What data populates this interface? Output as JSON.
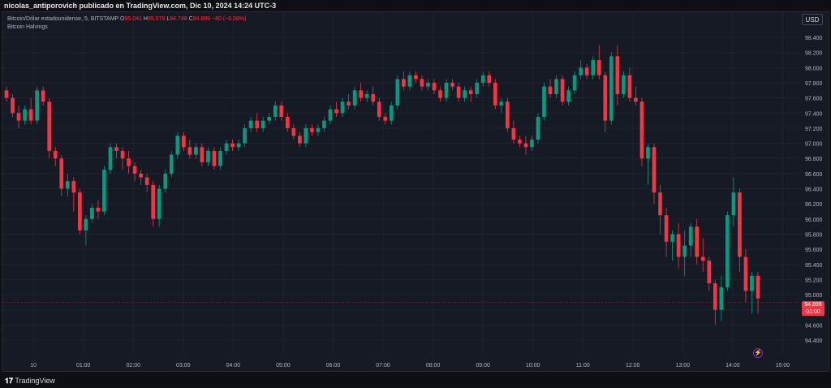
{
  "header": {
    "attribution": "nicolas_antiporovich publicado en TradingView.com, Dic 10, 2024 14:24 UTC-3"
  },
  "legend": {
    "symbol": "Bitcoin/Dólar estadounidense, 5, BITSTAMP",
    "o_label": "O",
    "o_value": "95.041",
    "h_label": "H",
    "h_value": "95.079",
    "l_label": "L",
    "l_value": "94.748",
    "c_label": "C",
    "c_value": "94.899",
    "change": "−80 (−0.08%)",
    "indicator": "Bitcoin Halvings"
  },
  "currency_button": "USD",
  "price_tag": {
    "price": "94.899",
    "countdown": "01:00"
  },
  "footer": {
    "brand": "TradingView"
  },
  "colors": {
    "up": "#089981",
    "down": "#f23645",
    "grid": "#1f2330",
    "text": "#b2b5be"
  },
  "chart_data": {
    "type": "candlestick",
    "interval": "5",
    "yticks": [
      94400,
      94600,
      94800,
      95000,
      95200,
      95400,
      95600,
      95800,
      96000,
      96200,
      96400,
      96600,
      96800,
      97000,
      97200,
      97400,
      97600,
      97800,
      98000,
      98200,
      98400
    ],
    "ytick_labels": [
      "94.400",
      "94.600",
      "94.800",
      "95.000",
      "95.200",
      "95.400",
      "95.600",
      "95.800",
      "96.000",
      "96.200",
      "96.400",
      "96.600",
      "96.800",
      "97.000",
      "97.200",
      "97.400",
      "97.600",
      "97.800",
      "98.000",
      "98.200",
      "98.400"
    ],
    "ylim": [
      94250,
      98540
    ],
    "x_hours": [
      0,
      1,
      2,
      3,
      4,
      5,
      6,
      7,
      8,
      9,
      10,
      11,
      12,
      13,
      14,
      15
    ],
    "x_labels": [
      "10",
      "01:00",
      "02:00",
      "03:00",
      "04:00",
      "05:00",
      "06:00",
      "07:00",
      "08:00",
      "09:00",
      "10:00",
      "11:00",
      "12:00",
      "13:00",
      "14:00",
      "15:00"
    ],
    "xlim_hours": [
      -0.62,
      15.35
    ],
    "last_price": 94899,
    "candles": [
      [
        97700,
        97750,
        97550,
        97600
      ],
      [
        97600,
        97650,
        97350,
        97400
      ],
      [
        97400,
        97500,
        97200,
        97300
      ],
      [
        97300,
        97500,
        97250,
        97450
      ],
      [
        97450,
        97600,
        97250,
        97300
      ],
      [
        97300,
        97750,
        97250,
        97700
      ],
      [
        97700,
        97750,
        97500,
        97550
      ],
      [
        97550,
        97600,
        96800,
        96900
      ],
      [
        96900,
        96950,
        96700,
        96800
      ],
      [
        96800,
        96850,
        96300,
        96400
      ],
      [
        96400,
        96600,
        96300,
        96500
      ],
      [
        96500,
        96550,
        96100,
        96350
      ],
      [
        96350,
        96400,
        95800,
        95850
      ],
      [
        95850,
        96050,
        95650,
        96000
      ],
      [
        96000,
        96200,
        95950,
        96150
      ],
      [
        96150,
        96250,
        96000,
        96100
      ],
      [
        96100,
        96700,
        96050,
        96650
      ],
      [
        96650,
        97000,
        96600,
        96950
      ],
      [
        96950,
        97000,
        96800,
        96900
      ],
      [
        96900,
        96950,
        96650,
        96800
      ],
      [
        96800,
        96900,
        96600,
        96700
      ],
      [
        96700,
        96750,
        96500,
        96600
      ],
      [
        96600,
        96650,
        96450,
        96550
      ],
      [
        96550,
        96600,
        96350,
        96450
      ],
      [
        96450,
        96500,
        95900,
        96000
      ],
      [
        96000,
        96450,
        95900,
        96400
      ],
      [
        96400,
        96650,
        96350,
        96600
      ],
      [
        96600,
        96900,
        96550,
        96850
      ],
      [
        96850,
        97150,
        96800,
        97100
      ],
      [
        97100,
        97150,
        96900,
        96950
      ],
      [
        96950,
        97050,
        96800,
        96850
      ],
      [
        96850,
        97000,
        96800,
        96950
      ],
      [
        96950,
        97000,
        96700,
        96750
      ],
      [
        96750,
        96950,
        96700,
        96900
      ],
      [
        96900,
        96950,
        96650,
        96700
      ],
      [
        96700,
        96950,
        96650,
        96900
      ],
      [
        96900,
        97050,
        96850,
        97000
      ],
      [
        97000,
        97050,
        96900,
        96950
      ],
      [
        96950,
        97050,
        96900,
        97000
      ],
      [
        97000,
        97250,
        96950,
        97200
      ],
      [
        97200,
        97350,
        97150,
        97300
      ],
      [
        97300,
        97400,
        97150,
        97200
      ],
      [
        97200,
        97350,
        97150,
        97300
      ],
      [
        97300,
        97400,
        97250,
        97350
      ],
      [
        97350,
        97550,
        97300,
        97500
      ],
      [
        97500,
        97550,
        97300,
        97350
      ],
      [
        97350,
        97400,
        97150,
        97200
      ],
      [
        97200,
        97250,
        97050,
        97100
      ],
      [
        97100,
        97150,
        96950,
        97000
      ],
      [
        97000,
        97250,
        96950,
        97200
      ],
      [
        97200,
        97250,
        97100,
        97150
      ],
      [
        97150,
        97250,
        97100,
        97200
      ],
      [
        97200,
        97350,
        97150,
        97300
      ],
      [
        97300,
        97500,
        97250,
        97450
      ],
      [
        97450,
        97550,
        97350,
        97400
      ],
      [
        97400,
        97600,
        97350,
        97550
      ],
      [
        97550,
        97650,
        97450,
        97500
      ],
      [
        97500,
        97750,
        97450,
        97700
      ],
      [
        97700,
        97800,
        97550,
        97600
      ],
      [
        97600,
        97700,
        97550,
        97650
      ],
      [
        97650,
        97750,
        97500,
        97550
      ],
      [
        97550,
        97600,
        97300,
        97350
      ],
      [
        97350,
        97400,
        97250,
        97300
      ],
      [
        97300,
        97550,
        97250,
        97500
      ],
      [
        97500,
        97900,
        97450,
        97850
      ],
      [
        97850,
        97950,
        97700,
        97750
      ],
      [
        97750,
        97950,
        97700,
        97900
      ],
      [
        97900,
        97950,
        97800,
        97850
      ],
      [
        97850,
        97900,
        97700,
        97750
      ],
      [
        97750,
        97850,
        97700,
        97800
      ],
      [
        97800,
        97850,
        97650,
        97700
      ],
      [
        97700,
        97750,
        97550,
        97600
      ],
      [
        97600,
        97850,
        97550,
        97800
      ],
      [
        97800,
        97850,
        97700,
        97750
      ],
      [
        97750,
        97800,
        97550,
        97600
      ],
      [
        97600,
        97750,
        97550,
        97700
      ],
      [
        97700,
        97750,
        97550,
        97650
      ],
      [
        97650,
        97850,
        97600,
        97800
      ],
      [
        97800,
        97950,
        97750,
        97900
      ],
      [
        97900,
        97950,
        97750,
        97800
      ],
      [
        97800,
        97850,
        97450,
        97500
      ],
      [
        97500,
        97600,
        97400,
        97550
      ],
      [
        97550,
        97600,
        97150,
        97200
      ],
      [
        97200,
        97300,
        97000,
        97050
      ],
      [
        97050,
        97100,
        96950,
        97000
      ],
      [
        97000,
        97100,
        96850,
        96950
      ],
      [
        96950,
        97100,
        96900,
        97050
      ],
      [
        97050,
        97400,
        97000,
        97350
      ],
      [
        97350,
        97800,
        97300,
        97750
      ],
      [
        97750,
        97850,
        97600,
        97650
      ],
      [
        97650,
        97900,
        97600,
        97850
      ],
      [
        97850,
        97900,
        97500,
        97550
      ],
      [
        97550,
        97750,
        97500,
        97700
      ],
      [
        97700,
        97950,
        97650,
        97900
      ],
      [
        97900,
        98100,
        97850,
        98000
      ],
      [
        98000,
        98050,
        97850,
        97900
      ],
      [
        97900,
        98150,
        97850,
        98100
      ],
      [
        98100,
        98300,
        97850,
        97900
      ],
      [
        97900,
        97950,
        97150,
        97300
      ],
      [
        97300,
        98200,
        97250,
        98150
      ],
      [
        98150,
        98300,
        97500,
        97650
      ],
      [
        97650,
        97950,
        97600,
        97900
      ],
      [
        97900,
        98000,
        97550,
        97600
      ],
      [
        97600,
        97750,
        97500,
        97550
      ],
      [
        97550,
        97600,
        96700,
        96800
      ],
      [
        96800,
        97000,
        96450,
        96950
      ],
      [
        96950,
        97000,
        96200,
        96350
      ],
      [
        96350,
        96450,
        95800,
        96050
      ],
      [
        96050,
        96150,
        95500,
        95700
      ],
      [
        95700,
        95850,
        95450,
        95800
      ],
      [
        95800,
        95950,
        95350,
        95500
      ],
      [
        95500,
        95850,
        95250,
        95650
      ],
      [
        95650,
        95950,
        95500,
        95900
      ],
      [
        95900,
        96000,
        95400,
        95500
      ],
      [
        95500,
        95750,
        95300,
        95450
      ],
      [
        95450,
        95500,
        95050,
        95150
      ],
      [
        95150,
        95200,
        94600,
        94800
      ],
      [
        94800,
        95250,
        94650,
        95100
      ],
      [
        95100,
        96100,
        95050,
        96050
      ],
      [
        96050,
        96550,
        95900,
        96350
      ],
      [
        96350,
        96400,
        95300,
        95500
      ],
      [
        95500,
        95600,
        94900,
        95050
      ],
      [
        95050,
        95300,
        94750,
        95250
      ],
      [
        95250,
        95300,
        94750,
        94950
      ]
    ]
  }
}
